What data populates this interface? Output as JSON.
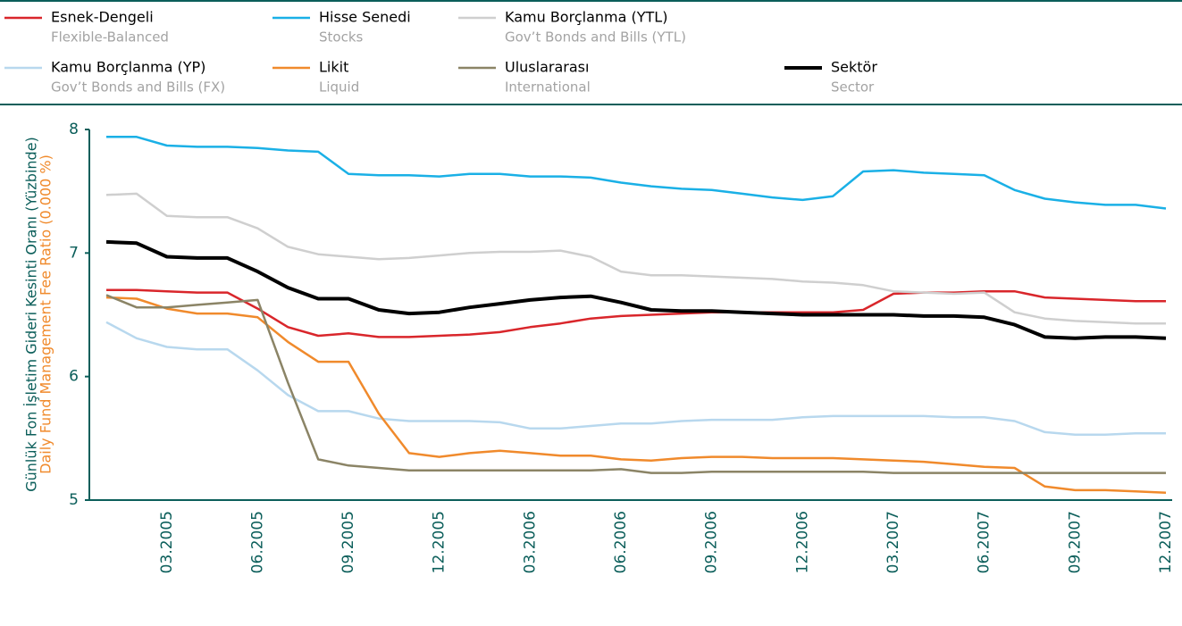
{
  "chart_data": {
    "type": "line",
    "y_label": "Günlük Fon İşletim Gideri Kesinti Oranı (Yüzbinde)",
    "y_label_en": "Daily Fund Management Fee Ratio (0.000 %)",
    "categories": [
      null,
      null,
      "03.2005",
      null,
      null,
      "06.2005",
      null,
      null,
      "09.2005",
      null,
      null,
      "12.2005",
      null,
      null,
      "03.2006",
      null,
      null,
      "06.2006",
      null,
      null,
      "09.2006",
      null,
      null,
      "12.2006",
      null,
      null,
      "03.2007",
      null,
      null,
      "06.2007",
      null,
      null,
      "09.2007",
      null,
      null,
      "12.2007"
    ],
    "ylim": [
      5,
      8
    ],
    "yticks": [
      5,
      6,
      7,
      8
    ],
    "grid": false,
    "series": [
      {
        "name": "Esnek-Dengeli",
        "subtitle": "Flexible-Balanced",
        "color": "#d9262b",
        "values": [
          6.7,
          6.7,
          6.69,
          6.68,
          6.68,
          6.55,
          6.4,
          6.33,
          6.35,
          6.32,
          6.32,
          6.33,
          6.34,
          6.36,
          6.4,
          6.43,
          6.47,
          6.49,
          6.5,
          6.51,
          6.52,
          6.52,
          6.52,
          6.52,
          6.52,
          6.54,
          6.67,
          6.68,
          6.68,
          6.69,
          6.69,
          6.64,
          6.63,
          6.62,
          6.61,
          6.61
        ]
      },
      {
        "name": "Hisse Senedi",
        "subtitle": "Stocks",
        "color": "#1ab0e6",
        "values": [
          7.94,
          7.94,
          7.87,
          7.86,
          7.86,
          7.85,
          7.83,
          7.82,
          7.64,
          7.63,
          7.63,
          7.62,
          7.64,
          7.64,
          7.62,
          7.62,
          7.61,
          7.57,
          7.54,
          7.52,
          7.51,
          7.48,
          7.45,
          7.43,
          7.46,
          7.66,
          7.67,
          7.65,
          7.64,
          7.63,
          7.51,
          7.44,
          7.41,
          7.39,
          7.39,
          7.36
        ]
      },
      {
        "name": "Kamu Borçlanma (YTL)",
        "subtitle": "Gov’t Bonds and Bills (YTL)",
        "color": "#cfcfcf",
        "values": [
          7.47,
          7.48,
          7.3,
          7.29,
          7.29,
          7.2,
          7.05,
          6.99,
          6.97,
          6.95,
          6.96,
          6.98,
          7.0,
          7.01,
          7.01,
          7.02,
          6.97,
          6.85,
          6.82,
          6.82,
          6.81,
          6.8,
          6.79,
          6.77,
          6.76,
          6.74,
          6.69,
          6.68,
          6.67,
          6.68,
          6.52,
          6.47,
          6.45,
          6.44,
          6.43,
          6.43
        ]
      },
      {
        "name": "Kamu Borçlanma (YP)",
        "subtitle": "Gov’t Bonds and Bills (FX)",
        "color": "#b8d8ee",
        "values": [
          6.44,
          6.31,
          6.24,
          6.22,
          6.22,
          6.05,
          5.85,
          5.72,
          5.72,
          5.66,
          5.64,
          5.64,
          5.64,
          5.63,
          5.58,
          5.58,
          5.6,
          5.62,
          5.62,
          5.64,
          5.65,
          5.65,
          5.65,
          5.67,
          5.68,
          5.68,
          5.68,
          5.68,
          5.67,
          5.67,
          5.64,
          5.55,
          5.53,
          5.53,
          5.54,
          5.54
        ]
      },
      {
        "name": "Likit",
        "subtitle": "Liquid",
        "color": "#f08a2c",
        "values": [
          6.64,
          6.63,
          6.55,
          6.51,
          6.51,
          6.48,
          6.28,
          6.12,
          6.12,
          5.7,
          5.38,
          5.35,
          5.38,
          5.4,
          5.38,
          5.36,
          5.36,
          5.33,
          5.32,
          5.34,
          5.35,
          5.35,
          5.34,
          5.34,
          5.34,
          5.33,
          5.32,
          5.31,
          5.29,
          5.27,
          5.26,
          5.11,
          5.08,
          5.08,
          5.07,
          5.06
        ]
      },
      {
        "name": "Uluslararası",
        "subtitle": "International",
        "color": "#8b8466",
        "values": [
          6.66,
          6.56,
          6.56,
          6.58,
          6.6,
          6.62,
          5.95,
          5.33,
          5.28,
          5.26,
          5.24,
          5.24,
          5.24,
          5.24,
          5.24,
          5.24,
          5.24,
          5.25,
          5.22,
          5.22,
          5.23,
          5.23,
          5.23,
          5.23,
          5.23,
          5.23,
          5.22,
          5.22,
          5.22,
          5.22,
          5.22,
          5.22,
          5.22,
          5.22,
          5.22,
          5.22
        ]
      },
      {
        "name": "Sektör",
        "subtitle": "Sector",
        "color": "#000000",
        "values": [
          7.09,
          7.08,
          6.97,
          6.96,
          6.96,
          6.85,
          6.72,
          6.63,
          6.63,
          6.54,
          6.51,
          6.52,
          6.56,
          6.59,
          6.62,
          6.64,
          6.65,
          6.6,
          6.54,
          6.53,
          6.53,
          6.52,
          6.51,
          6.5,
          6.5,
          6.5,
          6.5,
          6.49,
          6.49,
          6.48,
          6.42,
          6.32,
          6.31,
          6.32,
          6.32,
          6.31
        ]
      }
    ]
  }
}
